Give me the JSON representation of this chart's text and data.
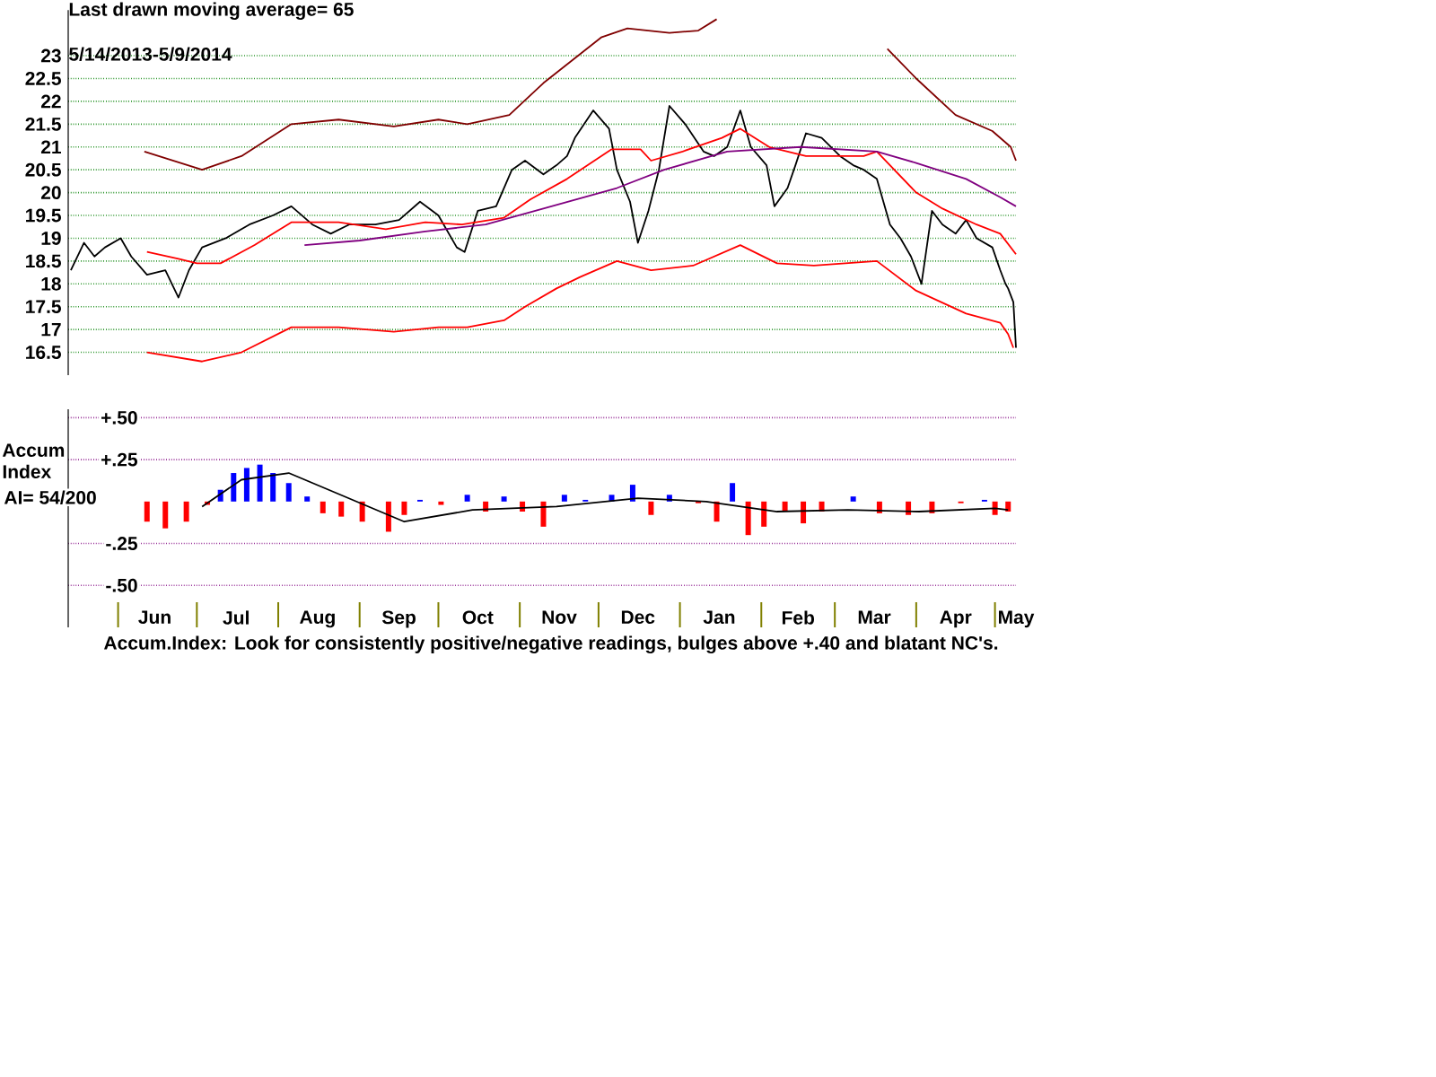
{
  "chart_data": [
    {
      "type": "line",
      "title": "Last drawn moving average= 65",
      "subtitle": "5/14/2013-5/9/2014",
      "xlim": [
        "2013-05-13",
        "2014-05-09"
      ],
      "ylim": [
        16,
        24
      ],
      "yticks": [
        16.5,
        17,
        17.5,
        18,
        18.5,
        19,
        19.5,
        20,
        20.5,
        21,
        21.5,
        22,
        22.5,
        23
      ],
      "grid": "y",
      "tick_labels": "y",
      "series": [
        {
          "color": "#000000",
          "x": [
            "2013-05-14",
            "2013-05-19",
            "2013-05-23",
            "2013-05-27",
            "2013-06-02",
            "2013-06-06",
            "2013-06-12",
            "2013-06-19",
            "2013-06-24",
            "2013-06-28",
            "2013-07-03",
            "2013-07-12",
            "2013-07-21",
            "2013-07-30",
            "2013-08-06",
            "2013-08-14",
            "2013-08-21",
            "2013-08-28",
            "2013-09-07",
            "2013-09-16",
            "2013-09-24",
            "2013-10-01",
            "2013-10-08",
            "2013-10-11",
            "2013-10-16",
            "2013-10-23",
            "2013-10-29",
            "2013-11-03",
            "2013-11-10",
            "2013-11-15",
            "2013-11-19",
            "2013-11-22",
            "2013-11-29",
            "2013-12-05",
            "2013-12-08",
            "2013-12-13",
            "2013-12-16",
            "2013-12-20",
            "2013-12-24",
            "2013-12-28",
            "2014-01-03",
            "2014-01-10",
            "2014-01-14",
            "2014-01-19",
            "2014-01-24",
            "2014-01-28",
            "2014-02-03",
            "2014-02-06",
            "2014-02-11",
            "2014-02-14",
            "2014-02-18",
            "2014-02-24",
            "2014-03-03",
            "2014-03-08",
            "2014-03-12",
            "2014-03-17",
            "2014-03-22",
            "2014-03-26",
            "2014-03-30",
            "2014-04-03",
            "2014-04-07",
            "2014-04-11",
            "2014-04-16",
            "2014-04-20",
            "2014-04-24",
            "2014-04-30",
            "2014-05-03",
            "2014-05-05",
            "2014-05-06",
            "2014-05-08",
            "2014-05-09"
          ],
          "values": [
            18.3,
            18.9,
            18.6,
            18.8,
            19.0,
            18.6,
            18.2,
            18.3,
            17.7,
            18.3,
            18.8,
            19.0,
            19.3,
            19.5,
            19.7,
            19.3,
            19.1,
            19.3,
            19.3,
            19.4,
            19.8,
            19.5,
            18.8,
            18.7,
            19.6,
            19.7,
            20.5,
            20.7,
            20.4,
            20.6,
            20.8,
            21.2,
            21.8,
            21.4,
            20.5,
            19.8,
            18.9,
            19.6,
            20.5,
            21.9,
            21.5,
            20.9,
            20.8,
            21.0,
            21.8,
            21.0,
            20.6,
            19.7,
            20.1,
            20.6,
            21.3,
            21.2,
            20.8,
            20.6,
            20.5,
            20.3,
            19.3,
            19.0,
            18.6,
            18.0,
            19.6,
            19.3,
            19.1,
            19.4,
            19.0,
            18.8,
            18.3,
            18.0,
            17.9,
            17.6,
            16.6
          ]
        },
        {
          "color": "#800000",
          "x": [
            "2013-06-11",
            "2013-07-03",
            "2013-07-18",
            "2013-08-06",
            "2013-08-24",
            "2013-09-14",
            "2013-10-01",
            "2013-10-12",
            "2013-10-28",
            "2013-11-10",
            "2013-12-02",
            "2013-12-12",
            "2013-12-28",
            "2014-01-08",
            "2014-01-15",
            "2014-02-15",
            "2014-03-21",
            "2014-04-01",
            "2014-04-16",
            "2014-04-30",
            "2014-05-07",
            "2014-05-09"
          ],
          "values": [
            20.9,
            20.5,
            20.8,
            21.5,
            21.6,
            21.45,
            21.6,
            21.5,
            21.7,
            22.4,
            23.4,
            23.6,
            23.5,
            23.55,
            23.8,
            null,
            23.15,
            22.5,
            21.7,
            21.35,
            21.0,
            20.7
          ]
        },
        {
          "color": "#ff0000",
          "x": [
            "2013-06-12",
            "2013-07-03",
            "2013-07-18",
            "2013-08-06",
            "2013-08-24",
            "2013-09-14",
            "2013-10-01",
            "2013-10-12",
            "2013-10-26",
            "2013-11-03",
            "2013-11-15",
            "2013-11-24",
            "2013-12-08",
            "2013-12-21",
            "2014-01-06",
            "2014-01-24",
            "2014-02-07",
            "2014-02-21",
            "2014-03-17",
            "2014-04-01",
            "2014-04-20",
            "2014-05-03",
            "2014-05-06",
            "2014-05-08"
          ],
          "values": [
            16.5,
            16.3,
            16.5,
            17.05,
            17.05,
            16.95,
            17.05,
            17.05,
            17.2,
            17.5,
            17.9,
            18.15,
            18.5,
            18.3,
            18.4,
            18.85,
            18.45,
            18.4,
            18.5,
            17.85,
            17.35,
            17.15,
            16.9,
            16.6
          ]
        },
        {
          "color": "#ff0000",
          "x": [
            "2013-06-12",
            "2013-06-24",
            "2013-07-01",
            "2013-07-10",
            "2013-07-23",
            "2013-08-06",
            "2013-08-24",
            "2013-09-11",
            "2013-09-26",
            "2013-10-10",
            "2013-10-26",
            "2013-11-05",
            "2013-11-19",
            "2013-12-06",
            "2013-12-17",
            "2013-12-21",
            "2014-01-02",
            "2014-01-17",
            "2014-01-24",
            "2014-02-04",
            "2014-02-18",
            "2014-03-12",
            "2014-03-17",
            "2014-04-01",
            "2014-04-11",
            "2014-04-24",
            "2014-05-03",
            "2014-05-09"
          ],
          "values": [
            18.7,
            18.55,
            18.45,
            18.45,
            18.85,
            19.35,
            19.35,
            19.2,
            19.35,
            19.3,
            19.45,
            19.85,
            20.3,
            20.95,
            20.95,
            20.7,
            20.9,
            21.2,
            21.4,
            21.0,
            20.8,
            20.8,
            20.9,
            20.0,
            19.65,
            19.3,
            19.1,
            18.65
          ]
        },
        {
          "color": "#800080",
          "x": [
            "2013-08-11",
            "2013-09-01",
            "2013-09-26",
            "2013-10-19",
            "2013-11-10",
            "2013-12-08",
            "2013-12-26",
            "2014-01-19",
            "2014-02-16",
            "2014-03-17",
            "2014-04-01",
            "2014-04-20",
            "2014-05-03",
            "2014-05-09"
          ],
          "values": [
            18.85,
            18.95,
            19.15,
            19.3,
            19.65,
            20.1,
            20.5,
            20.9,
            21.0,
            20.9,
            20.65,
            20.3,
            19.9,
            19.7
          ]
        }
      ]
    },
    {
      "type": "bar",
      "ylabel": "Accum Index",
      "annotations": [
        "AI= 54/200",
        "Accum.Index: Look for consistently positive/negative readings, bulges above +.40 and blatant NC's."
      ],
      "xlim": [
        "2013-05-13",
        "2014-05-09"
      ],
      "ylim": [
        -0.75,
        0.55
      ],
      "yticks": [
        {
          "value": 0.5,
          "label": "+.50"
        },
        {
          "value": 0.25,
          "label": "+.25"
        },
        {
          "value": -0.25,
          "label": "-.25"
        },
        {
          "value": -0.5,
          "label": "-.50"
        }
      ],
      "grid": "y",
      "xticks": [
        {
          "value": "2013-06-01",
          "label": null
        },
        {
          "value": "2013-06-15",
          "label": "Jun"
        },
        {
          "value": "2013-07-01",
          "label": null
        },
        {
          "value": "2013-07-16",
          "label": "Jul"
        },
        {
          "value": "2013-08-01",
          "label": null
        },
        {
          "value": "2013-08-16",
          "label": "Aug"
        },
        {
          "value": "2013-09-01",
          "label": null
        },
        {
          "value": "2013-09-16",
          "label": "Sep"
        },
        {
          "value": "2013-10-01",
          "label": null
        },
        {
          "value": "2013-10-16",
          "label": "Oct"
        },
        {
          "value": "2013-11-01",
          "label": null
        },
        {
          "value": "2013-11-16",
          "label": "Nov"
        },
        {
          "value": "2013-12-01",
          "label": null
        },
        {
          "value": "2013-12-16",
          "label": "Dec"
        },
        {
          "value": "2014-01-01",
          "label": null
        },
        {
          "value": "2014-01-16",
          "label": "Jan"
        },
        {
          "value": "2014-02-01",
          "label": null
        },
        {
          "value": "2014-02-15",
          "label": "Feb"
        },
        {
          "value": "2014-03-01",
          "label": null
        },
        {
          "value": "2014-03-16",
          "label": "Mar"
        },
        {
          "value": "2014-04-01",
          "label": null
        },
        {
          "value": "2014-04-16",
          "label": "Apr"
        },
        {
          "value": "2014-05-01",
          "label": null
        },
        {
          "value": "2014-05-09",
          "label": "May"
        }
      ],
      "series": [
        {
          "type": "bar",
          "x": [
            "2013-06-12",
            "2013-06-19",
            "2013-06-27",
            "2013-07-05",
            "2013-07-10",
            "2013-07-15",
            "2013-07-20",
            "2013-07-25",
            "2013-07-30",
            "2013-08-05",
            "2013-08-12",
            "2013-08-18",
            "2013-08-25",
            "2013-09-02",
            "2013-09-12",
            "2013-09-18",
            "2013-09-24",
            "2013-10-02",
            "2013-10-12",
            "2013-10-19",
            "2013-10-26",
            "2013-11-02",
            "2013-11-10",
            "2013-11-18",
            "2013-11-26",
            "2013-12-06",
            "2013-12-14",
            "2013-12-21",
            "2013-12-28",
            "2014-01-08",
            "2014-01-15",
            "2014-01-21",
            "2014-01-27",
            "2014-02-02",
            "2014-02-10",
            "2014-02-17",
            "2014-02-24",
            "2014-03-08",
            "2014-03-18",
            "2014-03-29",
            "2014-04-07",
            "2014-04-18",
            "2014-04-27",
            "2014-05-01",
            "2014-05-06"
          ],
          "values": [
            -0.12,
            -0.16,
            -0.12,
            -0.02,
            0.07,
            0.17,
            0.2,
            0.22,
            0.17,
            0.11,
            0.03,
            -0.07,
            -0.09,
            -0.12,
            -0.18,
            -0.08,
            0.01,
            -0.02,
            0.04,
            -0.06,
            0.03,
            -0.06,
            -0.15,
            0.04,
            0.01,
            0.04,
            0.1,
            -0.08,
            0.04,
            -0.01,
            -0.12,
            0.11,
            -0.2,
            -0.15,
            -0.06,
            -0.13,
            -0.06,
            0.03,
            -0.07,
            -0.08,
            -0.07,
            -0.01,
            0.01,
            -0.08,
            -0.06
          ],
          "colors": [
            "#ff0000",
            "#ff0000",
            "#ff0000",
            "#ff0000",
            "#0000ff",
            "#0000ff",
            "#0000ff",
            "#0000ff",
            "#0000ff",
            "#0000ff",
            "#0000ff",
            "#ff0000",
            "#ff0000",
            "#ff0000",
            "#ff0000",
            "#ff0000",
            "#0000ff",
            "#ff0000",
            "#0000ff",
            "#ff0000",
            "#0000ff",
            "#ff0000",
            "#ff0000",
            "#0000ff",
            "#0000ff",
            "#0000ff",
            "#0000ff",
            "#ff0000",
            "#0000ff",
            "#ff0000",
            "#ff0000",
            "#0000ff",
            "#ff0000",
            "#ff0000",
            "#ff0000",
            "#ff0000",
            "#ff0000",
            "#0000ff",
            "#ff0000",
            "#ff0000",
            "#ff0000",
            "#ff0000",
            "#0000ff",
            "#ff0000",
            "#ff0000"
          ]
        },
        {
          "type": "line",
          "color": "#000000",
          "x": [
            "2013-07-03",
            "2013-07-18",
            "2013-08-05",
            "2013-09-18",
            "2013-10-14",
            "2013-11-15",
            "2013-12-16",
            "2014-01-11",
            "2014-02-07",
            "2014-03-06",
            "2014-04-02",
            "2014-05-01",
            "2014-05-06"
          ],
          "values": [
            -0.03,
            0.13,
            0.17,
            -0.12,
            -0.05,
            -0.03,
            0.02,
            0.0,
            -0.06,
            -0.05,
            -0.06,
            -0.04,
            -0.05
          ]
        }
      ]
    }
  ]
}
